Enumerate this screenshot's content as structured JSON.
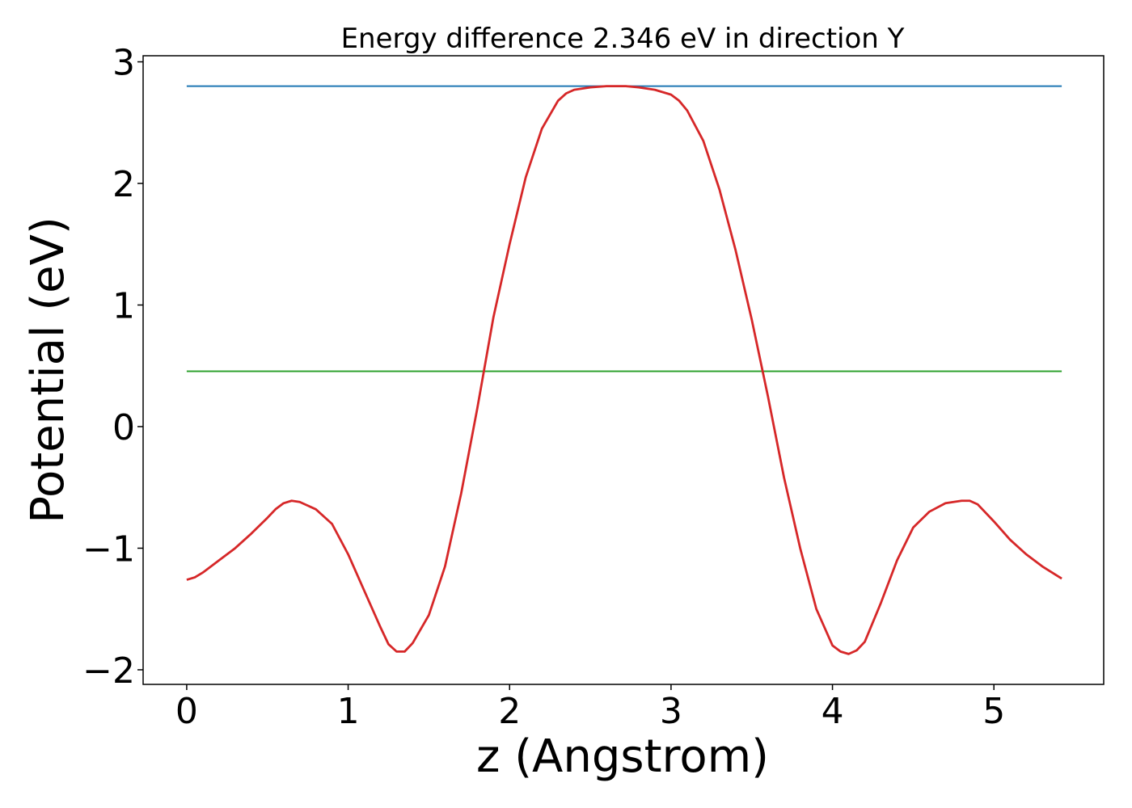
{
  "chart_data": {
    "type": "line",
    "title": "Energy difference 2.346 eV in direction Y",
    "xlabel": "z (Angstrom)",
    "ylabel": "Potential (eV)",
    "xlim": [
      -0.27,
      5.68
    ],
    "ylim": [
      -2.12,
      3.05
    ],
    "xticks": [
      0,
      1,
      2,
      3,
      4,
      5
    ],
    "xtick_labels": [
      "0",
      "1",
      "2",
      "3",
      "4",
      "5"
    ],
    "yticks": [
      -2,
      -1,
      0,
      1,
      2,
      3
    ],
    "ytick_labels": [
      "−2",
      "−1",
      "0",
      "1",
      "2",
      "3"
    ],
    "grid": false,
    "series": [
      {
        "color": "#1f77b4",
        "x": [
          0,
          5.42
        ],
        "y": [
          2.8,
          2.8
        ]
      },
      {
        "color": "#2ca02c",
        "x": [
          0,
          5.42
        ],
        "y": [
          0.455,
          0.455
        ]
      },
      {
        "color": "#d62728",
        "x": [
          0,
          0.05,
          0.1,
          0.2,
          0.3,
          0.4,
          0.5,
          0.55,
          0.6,
          0.65,
          0.7,
          0.8,
          0.9,
          1.0,
          1.1,
          1.2,
          1.25,
          1.3,
          1.35,
          1.4,
          1.5,
          1.6,
          1.7,
          1.8,
          1.9,
          2.0,
          2.1,
          2.2,
          2.3,
          2.35,
          2.4,
          2.5,
          2.6,
          2.7,
          2.72,
          2.8,
          2.9,
          3.0,
          3.05,
          3.1,
          3.2,
          3.3,
          3.4,
          3.5,
          3.6,
          3.7,
          3.8,
          3.9,
          4.0,
          4.05,
          4.1,
          4.15,
          4.2,
          4.3,
          4.4,
          4.5,
          4.6,
          4.7,
          4.8,
          4.85,
          4.9,
          5.0,
          5.1,
          5.2,
          5.3,
          5.42
        ],
        "y": [
          -1.26,
          -1.24,
          -1.2,
          -1.1,
          -1.0,
          -0.88,
          -0.75,
          -0.68,
          -0.63,
          -0.61,
          -0.62,
          -0.68,
          -0.8,
          -1.05,
          -1.35,
          -1.65,
          -1.79,
          -1.85,
          -1.85,
          -1.78,
          -1.55,
          -1.15,
          -0.55,
          0.15,
          0.9,
          1.5,
          2.05,
          2.45,
          2.68,
          2.74,
          2.77,
          2.79,
          2.8,
          2.8,
          2.8,
          2.79,
          2.77,
          2.73,
          2.68,
          2.6,
          2.35,
          1.95,
          1.45,
          0.88,
          0.25,
          -0.42,
          -1.0,
          -1.5,
          -1.8,
          -1.85,
          -1.87,
          -1.84,
          -1.77,
          -1.45,
          -1.1,
          -0.83,
          -0.7,
          -0.63,
          -0.61,
          -0.61,
          -0.64,
          -0.78,
          -0.93,
          -1.05,
          -1.15,
          -1.25
        ]
      }
    ]
  }
}
